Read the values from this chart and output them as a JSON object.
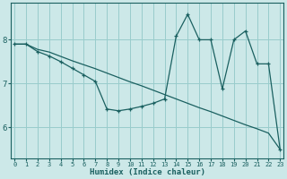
{
  "xlabel": "Humidex (Indice chaleur)",
  "background_color": "#cce8e8",
  "grid_color": "#99cccc",
  "line_color": "#1a6060",
  "xlim": [
    -0.3,
    23.3
  ],
  "ylim": [
    5.3,
    8.85
  ],
  "xticks": [
    0,
    1,
    2,
    3,
    4,
    5,
    6,
    7,
    8,
    9,
    10,
    11,
    12,
    13,
    14,
    15,
    16,
    17,
    18,
    19,
    20,
    21,
    22,
    23
  ],
  "yticks": [
    6,
    7,
    8
  ],
  "curve_straight_x": [
    0,
    1,
    2,
    3,
    4,
    5,
    6,
    7,
    8,
    9,
    10,
    11,
    12,
    13,
    14,
    15,
    16,
    17,
    18,
    19,
    20,
    21,
    22,
    23
  ],
  "curve_straight_y": [
    7.9,
    7.9,
    7.78,
    7.72,
    7.62,
    7.52,
    7.43,
    7.34,
    7.24,
    7.14,
    7.04,
    6.95,
    6.85,
    6.75,
    6.65,
    6.55,
    6.45,
    6.36,
    6.26,
    6.16,
    6.06,
    5.97,
    5.87,
    5.5
  ],
  "curve_jagged_x": [
    0,
    1,
    2,
    3,
    4,
    5,
    6,
    7,
    8,
    9,
    10,
    11,
    12,
    13,
    14,
    15,
    16,
    17,
    18,
    19,
    20,
    21,
    22,
    23
  ],
  "curve_jagged_y": [
    7.9,
    7.9,
    7.73,
    7.63,
    7.5,
    7.35,
    7.2,
    7.05,
    6.42,
    6.38,
    6.42,
    6.48,
    6.55,
    6.65,
    8.08,
    8.58,
    8.0,
    8.0,
    6.88,
    8.0,
    8.2,
    7.45,
    7.45,
    5.5
  ]
}
